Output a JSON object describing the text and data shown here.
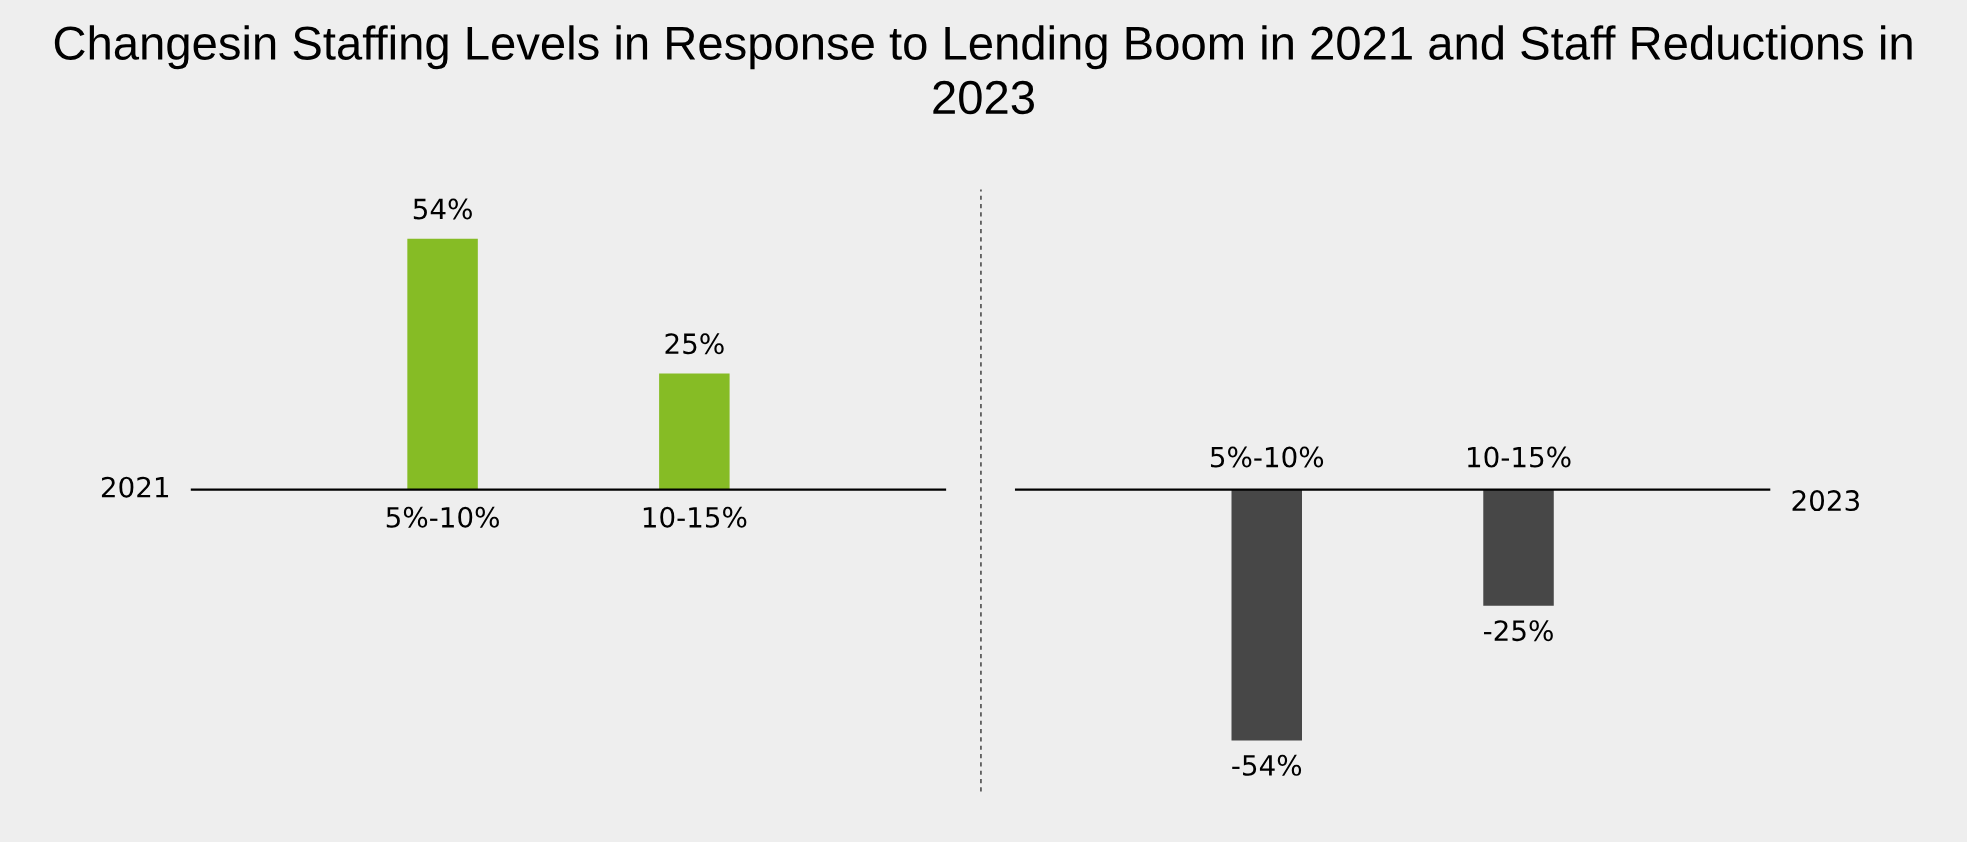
{
  "chart_data": [
    {
      "type": "bar",
      "title": "Changesin Staffing Levels in Response to Lending Boom in 2021 and Staff Reductions in 2023",
      "ylabel": "2021",
      "categories": [
        "5%-10%",
        "10-15%"
      ],
      "series": [
        {
          "color": "#86bc25",
          "values": [
            54,
            25
          ],
          "value_labels": [
            "54%",
            "25%"
          ]
        }
      ]
    },
    {
      "type": "bar",
      "ylabel": "2023",
      "categories": [
        "5%-10%",
        "10-15%"
      ],
      "series": [
        {
          "color": "#474747",
          "values": [
            -54,
            -25
          ],
          "value_labels": [
            "-54%",
            "-25%"
          ]
        }
      ]
    }
  ]
}
